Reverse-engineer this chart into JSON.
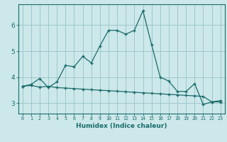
{
  "title": "",
  "xlabel": "Humidex (Indice chaleur)",
  "ylabel": "",
  "background_color": "#cce8ea",
  "grid_color": "#9ec8cc",
  "line_color": "#1a6b6b",
  "x_ticks": [
    0,
    1,
    2,
    3,
    4,
    5,
    6,
    7,
    8,
    9,
    10,
    11,
    12,
    13,
    14,
    15,
    16,
    17,
    18,
    19,
    20,
    21,
    22,
    23
  ],
  "y_ticks": [
    3,
    4,
    5,
    6
  ],
  "ylim": [
    2.6,
    6.8
  ],
  "xlim": [
    -0.5,
    23.5
  ],
  "line1_x": [
    0,
    1,
    2,
    3,
    4,
    5,
    6,
    7,
    8,
    9,
    10,
    11,
    12,
    13,
    14,
    15,
    16,
    17,
    18,
    19,
    20,
    21,
    22,
    23
  ],
  "line1_y": [
    3.65,
    3.72,
    3.95,
    3.6,
    3.82,
    4.45,
    4.4,
    4.8,
    4.55,
    5.2,
    5.8,
    5.8,
    5.65,
    5.8,
    6.55,
    5.25,
    4.0,
    3.85,
    3.45,
    3.45,
    3.75,
    2.95,
    3.05,
    3.1
  ],
  "line2_x": [
    0,
    1,
    2,
    3,
    4,
    5,
    6,
    7,
    8,
    9,
    10,
    11,
    12,
    13,
    14,
    15,
    16,
    17,
    18,
    19,
    20,
    21,
    22,
    23
  ],
  "line2_y": [
    3.65,
    3.68,
    3.62,
    3.65,
    3.6,
    3.58,
    3.56,
    3.54,
    3.52,
    3.5,
    3.48,
    3.46,
    3.44,
    3.42,
    3.4,
    3.38,
    3.36,
    3.34,
    3.32,
    3.3,
    3.28,
    3.26,
    3.05,
    3.05
  ]
}
